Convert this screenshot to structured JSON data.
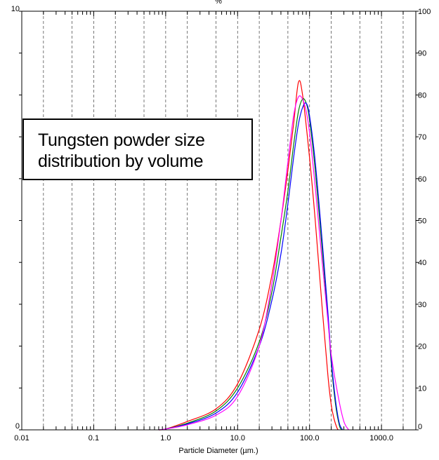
{
  "chart_data": {
    "type": "line",
    "title": "Tungsten powder size distribution by volume",
    "xlabel": "Particle Diameter (µm.)",
    "x_scale": "log",
    "xlim": [
      0.01,
      3000
    ],
    "x_ticks": [
      0.01,
      0.1,
      1.0,
      10.0,
      100.0,
      1000.0
    ],
    "x_tick_labels": [
      "0.01",
      "0.1",
      "1.0",
      "10.0",
      "100.0",
      "1000.0"
    ],
    "x_gridlines": [
      0.02,
      0.05,
      0.2,
      0.5,
      2,
      5,
      20,
      50,
      200,
      500,
      2000
    ],
    "left_axis": {
      "unit": "%",
      "ylim": [
        0,
        10
      ],
      "tick_labels": [
        "0",
        "10"
      ]
    },
    "right_axis": {
      "ylim": [
        0,
        100
      ],
      "tick_labels": [
        "0",
        "10",
        "20",
        "30",
        "40",
        "50",
        "60",
        "70",
        "80",
        "90",
        "100"
      ]
    },
    "grid": "vertical dashed",
    "series": [
      {
        "color": "#ff0000",
        "points": [
          [
            0.8,
            0
          ],
          [
            1,
            0.02
          ],
          [
            2,
            0.2
          ],
          [
            5,
            0.5
          ],
          [
            10,
            1.1
          ],
          [
            20,
            2.4
          ],
          [
            30,
            3.7
          ],
          [
            40,
            5.0
          ],
          [
            50,
            6.2
          ],
          [
            60,
            7.3
          ],
          [
            70,
            8.3
          ],
          [
            80,
            8.0
          ],
          [
            100,
            6.5
          ],
          [
            120,
            5.0
          ],
          [
            150,
            2.9
          ],
          [
            180,
            1.3
          ],
          [
            200,
            0.6
          ],
          [
            220,
            0.25
          ],
          [
            240,
            0.05
          ],
          [
            250,
            0
          ]
        ]
      },
      {
        "color": "#008000",
        "points": [
          [
            0.8,
            0
          ],
          [
            1,
            0.02
          ],
          [
            2,
            0.16
          ],
          [
            5,
            0.45
          ],
          [
            10,
            1.0
          ],
          [
            20,
            2.1
          ],
          [
            30,
            3.3
          ],
          [
            40,
            4.6
          ],
          [
            50,
            5.7
          ],
          [
            60,
            6.8
          ],
          [
            70,
            7.6
          ],
          [
            80,
            7.9
          ],
          [
            90,
            7.8
          ],
          [
            100,
            7.4
          ],
          [
            120,
            6.2
          ],
          [
            150,
            4.3
          ],
          [
            180,
            2.7
          ],
          [
            200,
            1.6
          ],
          [
            230,
            0.6
          ],
          [
            260,
            0.1
          ],
          [
            280,
            0
          ]
        ]
      },
      {
        "color": "#0000ff",
        "points": [
          [
            0.8,
            0
          ],
          [
            1,
            0.02
          ],
          [
            2,
            0.14
          ],
          [
            5,
            0.4
          ],
          [
            10,
            0.9
          ],
          [
            20,
            2.0
          ],
          [
            30,
            3.1
          ],
          [
            40,
            4.2
          ],
          [
            50,
            5.4
          ],
          [
            60,
            6.5
          ],
          [
            70,
            7.3
          ],
          [
            80,
            7.7
          ],
          [
            90,
            7.8
          ],
          [
            100,
            7.5
          ],
          [
            120,
            6.4
          ],
          [
            150,
            4.5
          ],
          [
            180,
            2.8
          ],
          [
            200,
            1.7
          ],
          [
            230,
            0.7
          ],
          [
            260,
            0.15
          ],
          [
            290,
            0
          ]
        ]
      },
      {
        "color": "#ff00ff",
        "points": [
          [
            0.8,
            0
          ],
          [
            1,
            0.02
          ],
          [
            2,
            0.12
          ],
          [
            5,
            0.35
          ],
          [
            10,
            0.8
          ],
          [
            20,
            2.0
          ],
          [
            30,
            3.5
          ],
          [
            40,
            5.0
          ],
          [
            50,
            6.4
          ],
          [
            60,
            7.5
          ],
          [
            70,
            7.95
          ],
          [
            80,
            7.9
          ],
          [
            90,
            7.6
          ],
          [
            100,
            7.1
          ],
          [
            120,
            5.8
          ],
          [
            150,
            4.0
          ],
          [
            180,
            2.6
          ],
          [
            200,
            1.8
          ],
          [
            250,
            0.8
          ],
          [
            300,
            0.2
          ],
          [
            350,
            0
          ]
        ]
      }
    ]
  },
  "legend_box": {
    "line1": "Tungsten powder size",
    "line2": "distribution by volume"
  }
}
